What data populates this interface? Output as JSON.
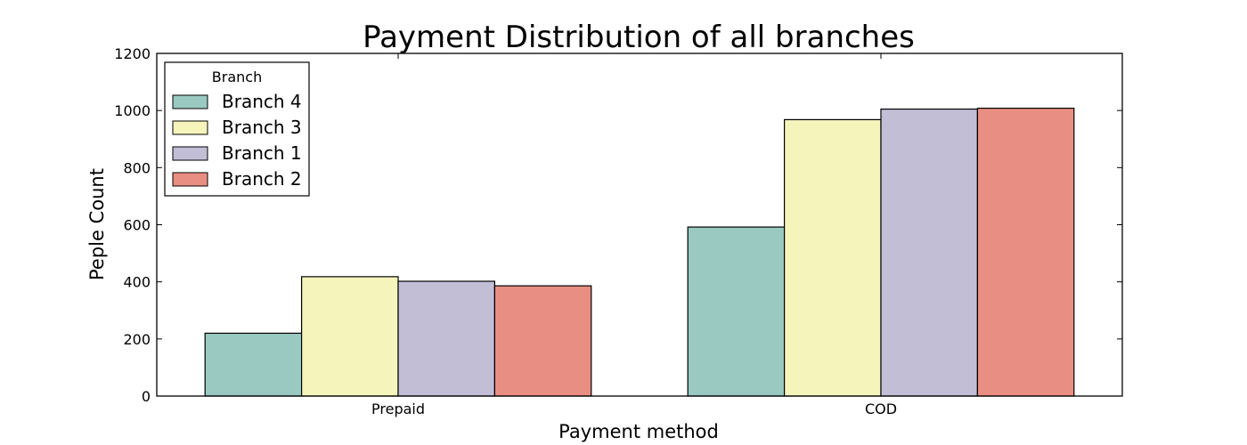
{
  "chart_data": {
    "type": "bar",
    "title": "Payment Distribution of all branches",
    "xlabel": "Payment method",
    "ylabel": "Peple Count",
    "categories": [
      "Prepaid",
      "COD"
    ],
    "ylim": [
      0,
      1200
    ],
    "yticks": [
      0,
      200,
      400,
      600,
      800,
      1000,
      1200
    ],
    "grid": false,
    "legend": {
      "title": "Branch",
      "placement": "top-left"
    },
    "series": [
      {
        "name": "Branch 4",
        "color": "#99c9c1",
        "values": [
          220,
          592
        ]
      },
      {
        "name": "Branch 3",
        "color": "#f5f4bb",
        "values": [
          418,
          968
        ]
      },
      {
        "name": "Branch 1",
        "color": "#c2bed6",
        "values": [
          402,
          1005
        ]
      },
      {
        "name": "Branch 2",
        "color": "#e98e83",
        "values": [
          386,
          1008
        ]
      }
    ]
  }
}
